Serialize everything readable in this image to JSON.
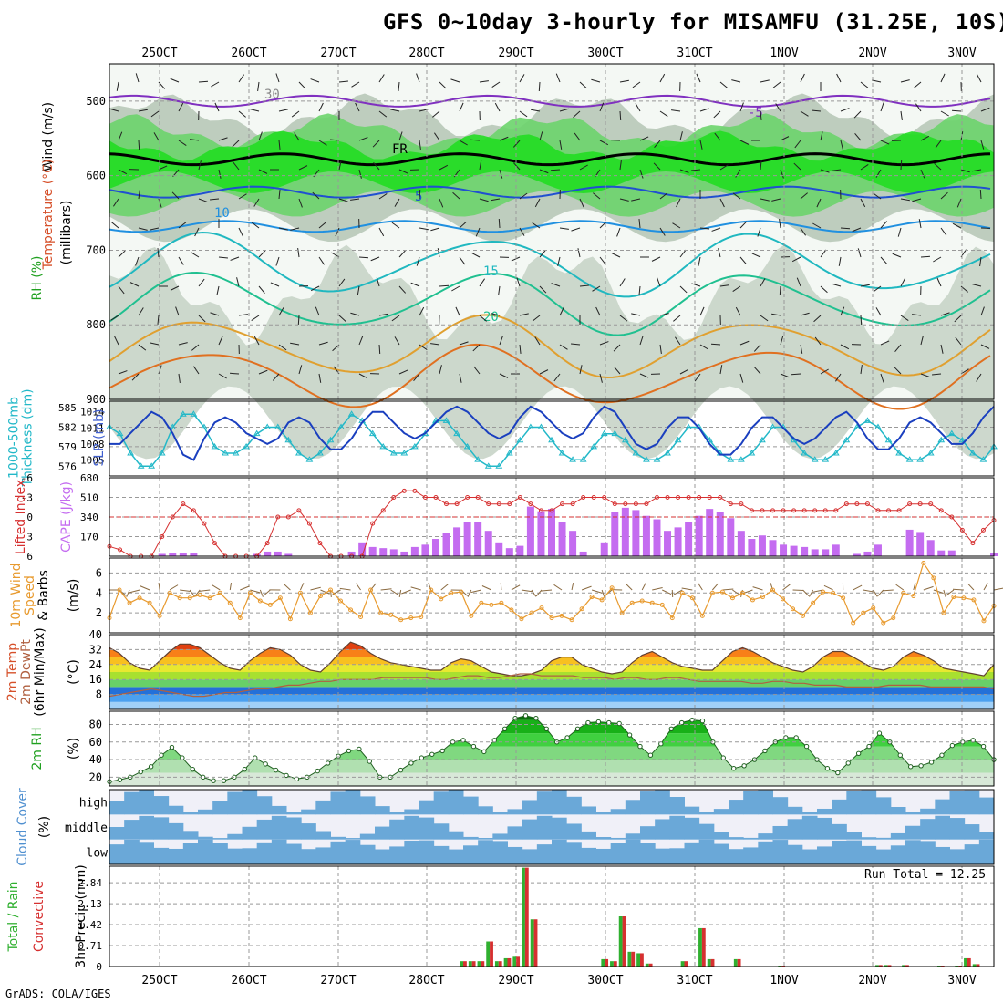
{
  "title": "GFS 0~10day 3-hourly for MISAMFU (31.25E, 10S)",
  "credit": "GrADS: COLA/IGES",
  "run_total_label": "Run Total = 12.25",
  "colors": {
    "rh": "#22cc22",
    "temp_line": "#1a3fbf",
    "thick": "#22b8c8",
    "cape": "#c46cf0",
    "li": "#d63030",
    "wind": "#e89a2e",
    "barb": "#8a6a40",
    "rain": "#d63030",
    "total": "#30b030",
    "cloud": "#6aa8d8",
    "cloud_bg": "#f0f0f8"
  },
  "chart_data": [
    {
      "type": "heatmap",
      "panel": "upper_air",
      "x_ticks": [
        "25OCT",
        "26OCT",
        "27OCT",
        "28OCT",
        "29OCT",
        "30OCT",
        "31OCT",
        "1NOV",
        "2NOV",
        "3NOV"
      ],
      "y_ticks": [
        500,
        600,
        700,
        800,
        900
      ],
      "ylabel": "(millibars)",
      "labels": [
        "Wind (m/s)",
        "Temperature (°C)",
        "RH (%)"
      ],
      "isotherm_labels": [
        "-5",
        "FR",
        "5",
        "10",
        "15",
        "20",
        "30"
      ],
      "ylim": [
        450,
        900
      ]
    },
    {
      "type": "line",
      "panel": "slp_thickness",
      "series": [
        {
          "name": "1000-500mb Thickness (dm)",
          "axis": "left",
          "ticks": [
            576,
            579,
            582,
            585
          ]
        },
        {
          "name": "SLP (mb)",
          "axis": "right",
          "ticks": [
            1005,
            1008,
            1011,
            1014
          ]
        }
      ],
      "left_label": "1000-500mb Thickness (dm)",
      "right_label": "SLP (mb)",
      "slp": [
        1008,
        1008,
        1010,
        1012,
        1014,
        1013,
        1010,
        1006,
        1005,
        1009,
        1012,
        1013,
        1012,
        1010,
        1009,
        1008,
        1009,
        1012,
        1013,
        1012,
        1009,
        1007,
        1007,
        1009,
        1012,
        1014,
        1014,
        1012,
        1010,
        1009,
        1010,
        1012,
        1014,
        1015,
        1014,
        1012,
        1010,
        1009,
        1010,
        1013,
        1015,
        1014,
        1012,
        1010,
        1009,
        1010,
        1013,
        1015,
        1014,
        1011,
        1008,
        1007,
        1008,
        1011,
        1013,
        1013,
        1011,
        1008,
        1006,
        1006,
        1008,
        1011,
        1013,
        1013,
        1011,
        1009,
        1008,
        1009,
        1011,
        1013,
        1014,
        1012,
        1009,
        1007,
        1007,
        1009,
        1012,
        1013,
        1012,
        1010,
        1008,
        1008,
        1010,
        1013,
        1015
      ],
      "thickness": [
        582,
        581,
        578,
        576,
        576,
        578,
        582,
        584,
        584,
        582,
        579,
        578,
        578,
        579,
        581,
        582,
        582,
        580,
        578,
        577,
        578,
        580,
        582,
        584,
        583,
        581,
        579,
        578,
        578,
        579,
        581,
        583,
        583,
        581,
        579,
        577,
        576,
        576,
        578,
        580,
        582,
        582,
        580,
        578,
        577,
        577,
        579,
        581,
        581,
        580,
        578,
        577,
        577,
        578,
        580,
        582,
        582,
        580,
        578,
        577,
        577,
        578,
        580,
        582,
        582,
        580,
        578,
        577,
        577,
        578,
        580,
        582,
        583,
        582,
        580,
        578,
        577,
        577,
        578,
        580,
        581,
        580,
        578,
        577,
        579
      ]
    },
    {
      "type": "bar",
      "panel": "cape_li",
      "left_label": "Lifted Index",
      "right_label": "CAPE (J/kg)",
      "li_ticks": [
        -6,
        -3,
        0,
        3,
        6
      ],
      "cape_ticks": [
        170,
        340,
        510,
        680
      ],
      "cape": [
        0,
        0,
        0,
        0,
        0,
        20,
        25,
        30,
        30,
        0,
        0,
        0,
        0,
        0,
        20,
        40,
        40,
        20,
        0,
        0,
        0,
        0,
        0,
        40,
        120,
        80,
        70,
        60,
        40,
        80,
        100,
        150,
        200,
        250,
        300,
        300,
        220,
        120,
        70,
        90,
        430,
        390,
        410,
        300,
        220,
        40,
        0,
        120,
        380,
        420,
        400,
        350,
        320,
        220,
        250,
        300,
        350,
        410,
        380,
        330,
        220,
        150,
        180,
        140,
        100,
        90,
        80,
        60,
        60,
        100,
        0,
        20,
        40,
        100,
        0,
        0,
        230,
        210,
        140,
        50,
        50,
        0,
        0,
        0,
        30
      ],
      "li": [
        4.5,
        5,
        6,
        6,
        6,
        3,
        0,
        -2,
        -1,
        1,
        4,
        6,
        6,
        6,
        6,
        4,
        0,
        0,
        -1,
        1,
        4,
        6,
        6,
        6,
        6,
        1,
        -1,
        -3,
        -4,
        -4,
        -3,
        -3,
        -2,
        -2,
        -3,
        -3,
        -2,
        -2,
        -2,
        -3,
        -2,
        -1,
        -1,
        -2,
        -2,
        -3,
        -3,
        -3,
        -2,
        -2,
        -2,
        -2,
        -3,
        -3,
        -3,
        -3,
        -3,
        -3,
        -3,
        -2,
        -2,
        -1,
        -1,
        -1,
        -1,
        -1,
        -1,
        -1,
        -1,
        -1,
        -2,
        -2,
        -2,
        -1,
        -1,
        -1,
        -2,
        -2,
        -2,
        -1,
        0,
        2,
        4,
        2,
        0.5
      ]
    },
    {
      "type": "line",
      "panel": "wind10m",
      "left_label": "10m Wind Speed & Barbs (m/s)",
      "y_ticks": [
        2,
        4,
        6
      ],
      "ylim": [
        0,
        7.5
      ],
      "values": [
        1.5,
        4.3,
        3,
        3.5,
        3,
        1.7,
        4,
        3.5,
        3.5,
        3.8,
        3.5,
        4,
        3,
        1.5,
        4,
        3.2,
        2.8,
        3.5,
        1.4,
        4,
        2,
        3.7,
        4.3,
        3.2,
        2.3,
        1.6,
        4.3,
        2,
        1.8,
        1.3,
        1.5,
        1.6,
        4.3,
        3.4,
        4,
        4.1,
        1.7,
        3,
        2.8,
        3,
        2.3,
        1.4,
        2,
        2.5,
        1.5,
        1.7,
        1.3,
        2.4,
        3.6,
        3.3,
        4.5,
        2,
        3,
        3.2,
        3,
        2.8,
        1.5,
        4,
        3.5,
        1.7,
        4,
        4.1,
        3.5,
        4,
        3.3,
        3.6,
        4.3,
        3.4,
        2.4,
        1.7,
        3,
        4.1,
        4,
        3.5,
        1,
        2,
        2.5,
        1,
        1.5,
        4,
        3.7,
        7,
        5.5,
        2,
        3.6,
        3.5,
        3.3,
        1.2,
        2.7
      ]
    },
    {
      "type": "area",
      "panel": "temp2m",
      "left_label": "2m Temp 2m DewPt (6hr Min/Max) (°C)",
      "y_ticks": [
        8,
        16,
        24,
        32,
        40
      ],
      "ylim": [
        0,
        40
      ],
      "temp": [
        33,
        30,
        25,
        22,
        21,
        26,
        31,
        35,
        35,
        33,
        29,
        25,
        22,
        21,
        26,
        30,
        33,
        32,
        29,
        24,
        21,
        20,
        25,
        31,
        36,
        34,
        30,
        27,
        25,
        24,
        23,
        22,
        21,
        21,
        25,
        27,
        26,
        23,
        20,
        19,
        18,
        18,
        19,
        21,
        26,
        28,
        28,
        24,
        22,
        20,
        19,
        20,
        25,
        29,
        31,
        28,
        25,
        23,
        22,
        21,
        21,
        26,
        31,
        33,
        31,
        28,
        25,
        23,
        21,
        20,
        23,
        28,
        31,
        31,
        28,
        25,
        22,
        21,
        23,
        28,
        31,
        29,
        26,
        22,
        21,
        20,
        19,
        18,
        24
      ],
      "dewpt": [
        7,
        8,
        9,
        10,
        11,
        10,
        9,
        8,
        7,
        7,
        8,
        9,
        9,
        10,
        11,
        11,
        12,
        13,
        13,
        14,
        15,
        15,
        16,
        16,
        16,
        16,
        17,
        17,
        17,
        17,
        17,
        16,
        16,
        17,
        18,
        18,
        17,
        17,
        18,
        19,
        19,
        18,
        18,
        18,
        18,
        17,
        17,
        17,
        16,
        17,
        17,
        16,
        16,
        17,
        17,
        16,
        15,
        15,
        15,
        15,
        15,
        14,
        14,
        15,
        15,
        14,
        14,
        13,
        13,
        13,
        12,
        12,
        12,
        12,
        13,
        13,
        13,
        13,
        12,
        12,
        12,
        12,
        12,
        12,
        11
      ]
    },
    {
      "type": "area",
      "panel": "rh2m",
      "left_label": "2m RH (%)",
      "y_ticks": [
        20,
        40,
        60,
        80
      ],
      "ylim": [
        10,
        95
      ],
      "values": [
        15,
        17,
        20,
        26,
        32,
        45,
        54,
        42,
        29,
        20,
        16,
        16,
        20,
        29,
        42,
        35,
        28,
        22,
        18,
        20,
        27,
        36,
        44,
        50,
        52,
        38,
        20,
        20,
        28,
        36,
        42,
        46,
        50,
        60,
        62,
        55,
        49,
        62,
        75,
        87,
        90,
        87,
        75,
        60,
        65,
        75,
        82,
        83,
        82,
        81,
        68,
        55,
        45,
        58,
        75,
        82,
        85,
        84,
        60,
        42,
        30,
        33,
        40,
        50,
        60,
        65,
        65,
        55,
        40,
        30,
        25,
        36,
        47,
        55,
        70,
        60,
        45,
        32,
        33,
        37,
        45,
        56,
        60,
        62,
        55,
        40
      ]
    },
    {
      "type": "bar",
      "panel": "cloud",
      "left_label": "Cloud Cover (%)",
      "levels": [
        "high",
        "middle",
        "low"
      ]
    },
    {
      "type": "bar",
      "panel": "precip",
      "left_label": "Total / Rain Convective",
      "ylabel": "3hr Precip (mm)",
      "y_ticks": [
        0,
        0.71,
        1.42,
        2.13,
        2.84
      ],
      "ylim": [
        0,
        3.4
      ],
      "total": [
        0,
        0,
        0,
        0,
        0,
        0,
        0,
        0,
        0,
        0,
        0,
        0,
        0,
        0,
        0,
        0,
        0,
        0,
        0,
        0,
        0,
        0,
        0,
        0,
        0,
        0,
        0,
        0,
        0,
        0,
        0,
        0,
        0,
        0,
        0,
        0,
        0,
        0,
        0,
        0,
        0.18,
        0.18,
        0.18,
        0.85,
        0.18,
        0.28,
        0.33,
        3.35,
        1.6,
        0,
        0,
        0,
        0,
        0,
        0,
        0,
        0.25,
        0.18,
        1.7,
        0.5,
        0.45,
        0.1,
        0,
        0,
        0,
        0.18,
        0,
        1.3,
        0.25,
        0,
        0,
        0.25,
        0,
        0,
        0,
        0,
        0.03,
        0,
        0,
        0,
        0,
        0,
        0,
        0,
        0,
        0,
        0,
        0.05,
        0.05,
        0,
        0.05,
        0,
        0,
        0,
        0.03,
        0,
        0.03,
        0.28,
        0.08,
        0,
        0
      ],
      "rain": [
        0,
        0,
        0,
        0,
        0,
        0,
        0,
        0,
        0,
        0,
        0,
        0,
        0,
        0,
        0,
        0,
        0,
        0,
        0,
        0,
        0,
        0,
        0,
        0,
        0,
        0,
        0,
        0,
        0,
        0,
        0,
        0,
        0,
        0,
        0,
        0,
        0,
        0,
        0,
        0,
        0.18,
        0.18,
        0.18,
        0.85,
        0.18,
        0.28,
        0.33,
        3.35,
        1.6,
        0,
        0,
        0,
        0,
        0,
        0,
        0,
        0.25,
        0.18,
        1.7,
        0.5,
        0.45,
        0.1,
        0,
        0,
        0,
        0.18,
        0,
        1.3,
        0.25,
        0,
        0,
        0.25,
        0,
        0,
        0,
        0,
        0.03,
        0,
        0,
        0,
        0,
        0,
        0,
        0,
        0,
        0,
        0,
        0.05,
        0.05,
        0,
        0.05,
        0,
        0,
        0,
        0.03,
        0,
        0.03,
        0.28,
        0.08,
        0,
        0
      ]
    }
  ]
}
